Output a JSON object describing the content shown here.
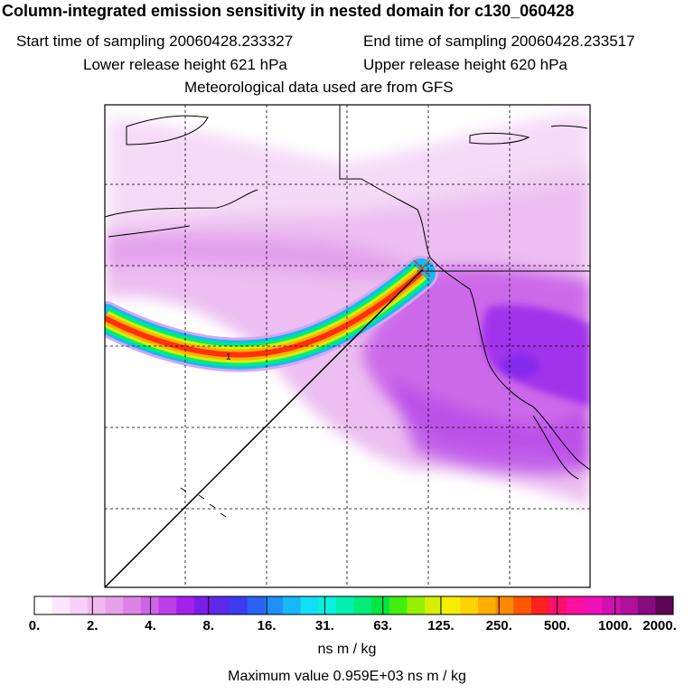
{
  "title": "Column-integrated emission sensitivity in nested domain for c130_060428",
  "sampling": {
    "start": "Start time of sampling 20060428.233327",
    "end": "End time of sampling 20060428.233517"
  },
  "release": {
    "lower": "Lower release height  621 hPa",
    "upper": "Upper release height  620 hPa"
  },
  "met_note": "Meteorological data used are from GFS",
  "colorbar": {
    "labels": [
      "0.",
      "2.",
      "4.",
      "8.",
      "16.",
      "31.",
      "63.",
      "125.",
      "250.",
      "500.",
      "1000.",
      "2000."
    ],
    "units": "ns m / kg",
    "colors": [
      "#ffffff",
      "#fbe6fb",
      "#f6d0f6",
      "#f0b8f0",
      "#e7a0ea",
      "#dc84e6",
      "#ce65e6",
      "#bd3fe8",
      "#a520ea",
      "#7c1eea",
      "#5c28ee",
      "#3a3cf2",
      "#2a62f6",
      "#1e90f8",
      "#16b8f8",
      "#10e0f6",
      "#08f0e0",
      "#00f0b0",
      "#00ec7a",
      "#00e640",
      "#40ee10",
      "#96f000",
      "#d6f000",
      "#f6ee00",
      "#ffd200",
      "#ffae00",
      "#ff8800",
      "#ff5800",
      "#ff2020",
      "#ff1070",
      "#ff10a0",
      "#f010b8",
      "#d010b0",
      "#b0109c",
      "#8a0a80",
      "#5a0654"
    ]
  },
  "plume_marker": "1",
  "max_value": "Maximum value  0.959E+03 ns m / kg"
}
